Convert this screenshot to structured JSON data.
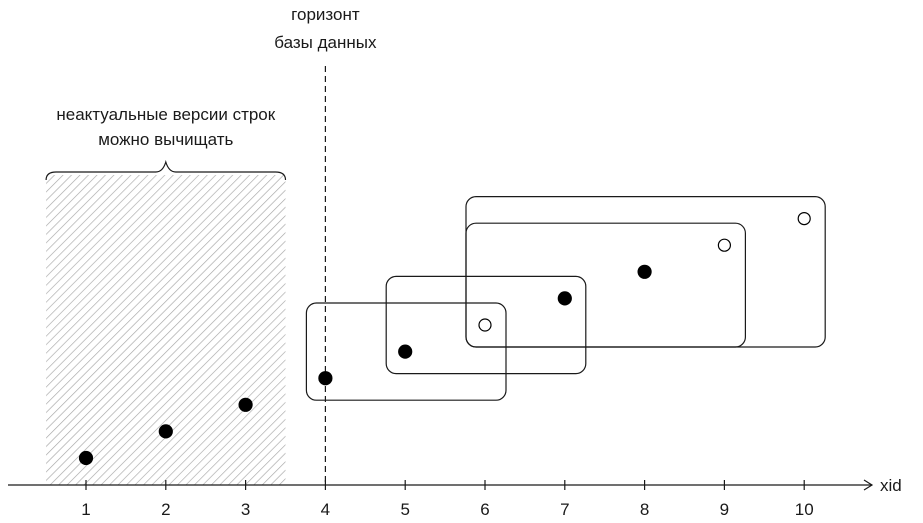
{
  "diagram": {
    "horizon_label_line1": "горизонт",
    "horizon_label_line2": "базы данных",
    "cleanup_label_line1": "неактуальные версии строк",
    "cleanup_label_line2": "можно вычищать",
    "axis_label": "xid",
    "ticks": [
      "1",
      "2",
      "3",
      "4",
      "5",
      "6",
      "7",
      "8",
      "9",
      "10"
    ],
    "horizon_xid": 4,
    "cleanup_range": [
      0.5,
      3.5
    ],
    "colors": {
      "stroke": "#1a1a1a",
      "hatch": "#a6a6a6",
      "point": "#000000"
    },
    "points": [
      {
        "xid": 1,
        "level": 1,
        "filled": true
      },
      {
        "xid": 2,
        "level": 2,
        "filled": true
      },
      {
        "xid": 3,
        "level": 3,
        "filled": true
      },
      {
        "xid": 4,
        "level": 4,
        "filled": true
      },
      {
        "xid": 5,
        "level": 5,
        "filled": true
      },
      {
        "xid": 6,
        "level": 6,
        "filled": false
      },
      {
        "xid": 7,
        "level": 7,
        "filled": true
      },
      {
        "xid": 8,
        "level": 8,
        "filled": true
      },
      {
        "xid": 9,
        "level": 9,
        "filled": false
      },
      {
        "xid": 10,
        "level": 10,
        "filled": false
      }
    ],
    "snapshots": [
      {
        "from_xid": 4,
        "to_xid": 6
      },
      {
        "from_xid": 5,
        "to_xid": 7
      },
      {
        "from_xid": 6,
        "to_xid": 9
      },
      {
        "from_xid": 6,
        "to_xid": 10
      }
    ]
  }
}
